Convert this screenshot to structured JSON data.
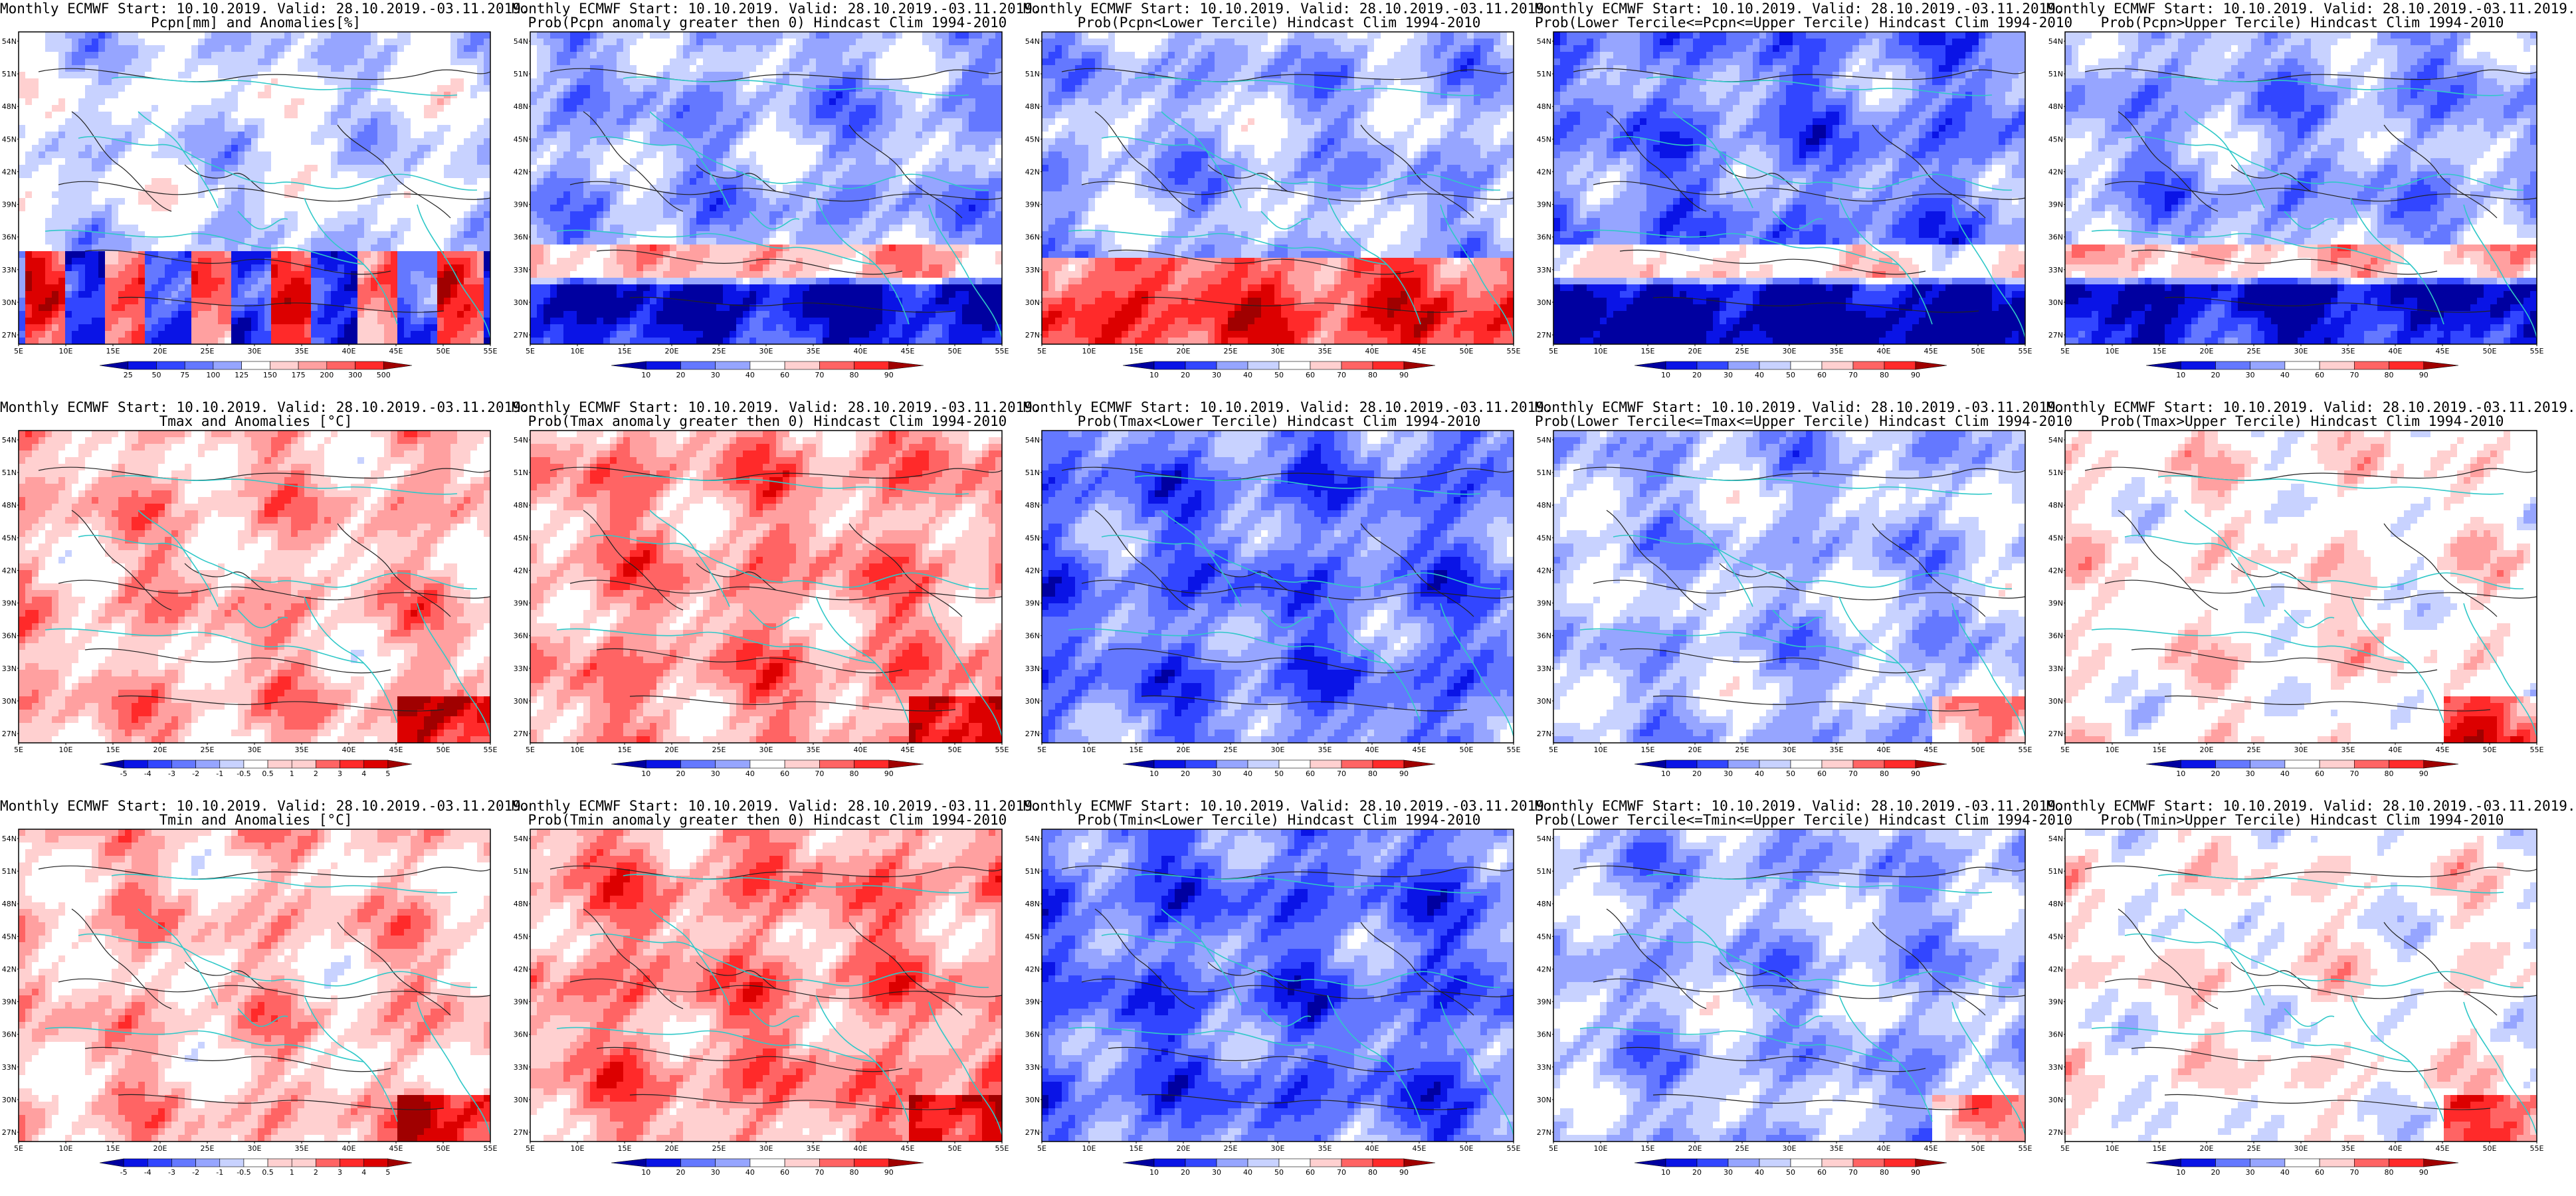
{
  "lat_ticks": [
    "54N",
    "51N",
    "48N",
    "45N",
    "42N",
    "39N",
    "36N",
    "33N",
    "30N",
    "27N"
  ],
  "lon_ticks": [
    "5E",
    "10E",
    "15E",
    "20E",
    "25E",
    "30E",
    "35E",
    "40E",
    "45E",
    "50E",
    "55E"
  ],
  "colors": {
    "coastline": "#30c8c8",
    "contour": "#222222",
    "blue_scale": [
      "#0000a0",
      "#0a14e6",
      "#3246ff",
      "#6478ff",
      "#96a5ff",
      "#c8d2ff",
      "#ffffff"
    ],
    "red_scale": [
      "#ffffff",
      "#ffd0d0",
      "#ffa0a0",
      "#ff6464",
      "#ff2a2a",
      "#dc0000",
      "#a00000"
    ]
  },
  "rows": [
    {
      "name": "precipitation",
      "panels": [
        {
          "id": "pcpn-anom",
          "title1": "Monthly ECMWF Start: 10.10.2019. Valid: 28.10.2019.-03.11.2019.",
          "title2": "Pcpn[mm] and Anomalies[%]",
          "colorbar": [
            "25",
            "50",
            "75",
            "100",
            "125",
            "150",
            "175",
            "200",
            "300",
            "500"
          ],
          "fill": "anom_pcpn",
          "field": 0.05
        },
        {
          "id": "pcpn-prob-gt0",
          "title1": "Monthly ECMWF Start: 10.10.2019. Valid: 28.10.2019.-03.11.2019.",
          "title2": "Prob(Pcpn anomaly greater then 0) Hindcast Clim 1994-2010",
          "colorbar": [
            "10",
            "20",
            "30",
            "40",
            "60",
            "70",
            "80",
            "90"
          ],
          "fill": "prob",
          "field": -0.55
        },
        {
          "id": "pcpn-prob-lower",
          "title1": "Monthly ECMWF Start: 10.10.2019. Valid: 28.10.2019.-03.11.2019.",
          "title2": "Prob(Pcpn<Lower Tercile) Hindcast Clim 1994-2010",
          "colorbar": [
            "10",
            "20",
            "30",
            "40",
            "50",
            "60",
            "70",
            "80",
            "90"
          ],
          "fill": "prob_south_red",
          "field": -0.3
        },
        {
          "id": "pcpn-prob-middle",
          "title1": "Monthly ECMWF Start: 10.10.2019. Valid: 28.10.2019.-03.11.2019.",
          "title2": "Prob(Lower Tercile<=Pcpn<=Upper Tercile) Hindcast Clim 1994-2010",
          "colorbar": [
            "10",
            "20",
            "30",
            "40",
            "50",
            "60",
            "70",
            "80",
            "90"
          ],
          "fill": "prob",
          "field": -0.8
        },
        {
          "id": "pcpn-prob-upper",
          "title1": "Monthly ECMWF Start: 10.10.2019. Valid: 28.10.2019.-03.11.2019.",
          "title2": "Prob(Pcpn>Upper Tercile) Hindcast Clim 1994-2010",
          "colorbar": [
            "10",
            "20",
            "30",
            "40",
            "60",
            "70",
            "80",
            "90"
          ],
          "fill": "prob",
          "field": -0.6
        }
      ]
    },
    {
      "name": "tmax",
      "panels": [
        {
          "id": "tmax-anom",
          "title1": "Monthly ECMWF Start: 10.10.2019. Valid: 28.10.2019.-03.11.2019.",
          "title2": "Tmax and Anomalies [°C]",
          "colorbar": [
            "-5",
            "-4",
            "-3",
            "-2",
            "-1",
            "-0.5",
            "0.5",
            "1",
            "2",
            "3",
            "4",
            "5"
          ],
          "fill": "anom_temp",
          "field": 0.45
        },
        {
          "id": "tmax-prob-gt0",
          "title1": "Monthly ECMWF Start: 10.10.2019. Valid: 28.10.2019.-03.11.2019.",
          "title2": "Prob(Tmax anomaly greater then 0) Hindcast Clim 1994-2010",
          "colorbar": [
            "10",
            "20",
            "30",
            "40",
            "60",
            "70",
            "80",
            "90"
          ],
          "fill": "prob",
          "field": 0.6
        },
        {
          "id": "tmax-prob-lower",
          "title1": "Monthly ECMWF Start: 10.10.2019. Valid: 28.10.2019.-03.11.2019.",
          "title2": "Prob(Tmax<Lower Tercile) Hindcast Clim 1994-2010",
          "colorbar": [
            "10",
            "20",
            "30",
            "40",
            "50",
            "60",
            "70",
            "80",
            "90"
          ],
          "fill": "prob",
          "field": -0.85
        },
        {
          "id": "tmax-prob-middle",
          "title1": "Monthly ECMWF Start: 10.10.2019. Valid: 28.10.2019.-03.11.2019.",
          "title2": "Prob(Lower Tercile<=Tmax<=Upper Tercile) Hindcast Clim 1994-2010",
          "colorbar": [
            "10",
            "20",
            "30",
            "40",
            "50",
            "60",
            "70",
            "80",
            "90"
          ],
          "fill": "prob",
          "field": -0.45
        },
        {
          "id": "tmax-prob-upper",
          "title1": "Monthly ECMWF Start: 10.10.2019. Valid: 28.10.2019.-03.11.2019.",
          "title2": "Prob(Tmax>Upper Tercile) Hindcast Clim 1994-2010",
          "colorbar": [
            "10",
            "20",
            "30",
            "40",
            "60",
            "70",
            "80",
            "90"
          ],
          "fill": "prob",
          "field": 0.1
        }
      ]
    },
    {
      "name": "tmin",
      "panels": [
        {
          "id": "tmin-anom",
          "title1": "Monthly ECMWF Start: 10.10.2019. Valid: 28.10.2019.-03.11.2019.",
          "title2": "Tmin and Anomalies [°C]",
          "colorbar": [
            "-5",
            "-4",
            "-3",
            "-2",
            "-1",
            "-0.5",
            "0.5",
            "1",
            "2",
            "3",
            "4",
            "5"
          ],
          "fill": "anom_temp",
          "field": 0.4
        },
        {
          "id": "tmin-prob-gt0",
          "title1": "Monthly ECMWF Start: 10.10.2019. Valid: 28.10.2019.-03.11.2019.",
          "title2": "Prob(Tmin anomaly greater then 0) Hindcast Clim 1994-2010",
          "colorbar": [
            "10",
            "20",
            "30",
            "40",
            "60",
            "70",
            "80",
            "90"
          ],
          "fill": "prob",
          "field": 0.65
        },
        {
          "id": "tmin-prob-lower",
          "title1": "Monthly ECMWF Start: 10.10.2019. Valid: 28.10.2019.-03.11.2019.",
          "title2": "Prob(Tmin<Lower Tercile) Hindcast Clim 1994-2010",
          "colorbar": [
            "10",
            "20",
            "30",
            "40",
            "50",
            "60",
            "70",
            "80",
            "90"
          ],
          "fill": "prob",
          "field": -0.9
        },
        {
          "id": "tmin-prob-middle",
          "title1": "Monthly ECMWF Start: 10.10.2019. Valid: 28.10.2019.-03.11.2019.",
          "title2": "Prob(Lower Tercile<=Tmin<=Upper Tercile) Hindcast Clim 1994-2010",
          "colorbar": [
            "10",
            "20",
            "30",
            "40",
            "50",
            "60",
            "70",
            "80",
            "90"
          ],
          "fill": "prob",
          "field": -0.5
        },
        {
          "id": "tmin-prob-upper",
          "title1": "Monthly ECMWF Start: 10.10.2019. Valid: 28.10.2019.-03.11.2019.",
          "title2": "Prob(Tmin>Upper Tercile) Hindcast Clim 1994-2010",
          "colorbar": [
            "10",
            "20",
            "30",
            "40",
            "60",
            "70",
            "80",
            "90"
          ],
          "fill": "prob",
          "field": 0.05
        }
      ]
    }
  ]
}
